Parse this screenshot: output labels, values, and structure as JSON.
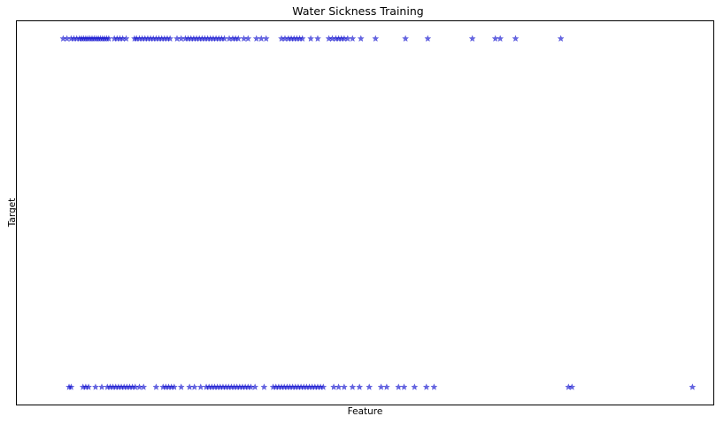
{
  "chart_data": {
    "type": "scatter",
    "title": "Water Sickness Training",
    "xlabel": "Feature",
    "ylabel": "Target",
    "xlim": [
      0,
      100
    ],
    "ylim": [
      -0.05,
      1.05
    ],
    "grid": false,
    "xticks": false,
    "yticks": false,
    "marker": "star",
    "color": "#0000cc",
    "opacity": 0.6,
    "series": [
      {
        "y": 1,
        "x": [
          6.65,
          7.2,
          7.8,
          8.2,
          8.6,
          9.0,
          9.3,
          9.6,
          9.9,
          10.2,
          10.5,
          10.8,
          11.1,
          11.4,
          11.7,
          12.0,
          12.3,
          12.6,
          12.9,
          13.2,
          14.0,
          14.4,
          14.8,
          15.2,
          15.7,
          16.9,
          17.2,
          17.6,
          18.0,
          18.4,
          18.8,
          19.2,
          19.6,
          20.0,
          20.4,
          20.8,
          21.2,
          21.6,
          22.0,
          23.0,
          23.6,
          24.2,
          24.6,
          25.0,
          25.4,
          25.8,
          26.2,
          26.6,
          27.0,
          27.4,
          27.8,
          28.2,
          28.6,
          29.0,
          29.4,
          29.8,
          30.5,
          31.0,
          31.4,
          31.8,
          32.6,
          33.2,
          34.4,
          35.1,
          35.8,
          38.0,
          38.5,
          39.0,
          39.4,
          39.8,
          40.2,
          40.6,
          41.0,
          42.2,
          43.2,
          44.8,
          45.3,
          45.8,
          46.2,
          46.6,
          47.0,
          47.5,
          48.2,
          49.4,
          51.5,
          55.8,
          59.0,
          65.4,
          68.7,
          69.4,
          71.6,
          78.1
        ]
      },
      {
        "y": 0,
        "x": [
          7.5,
          7.8,
          9.5,
          9.9,
          10.3,
          11.3,
          12.2,
          13.0,
          13.4,
          13.8,
          14.2,
          14.6,
          15.0,
          15.4,
          15.8,
          16.2,
          16.6,
          17.0,
          17.6,
          18.2,
          20.0,
          21.0,
          21.4,
          21.8,
          22.2,
          22.6,
          23.6,
          24.8,
          25.5,
          26.4,
          27.2,
          27.6,
          28.0,
          28.4,
          28.8,
          29.2,
          29.6,
          30.0,
          30.4,
          30.8,
          31.2,
          31.6,
          32.0,
          32.4,
          32.8,
          33.2,
          33.6,
          34.2,
          35.5,
          36.8,
          37.2,
          37.6,
          38.0,
          38.4,
          38.8,
          39.2,
          39.6,
          40.0,
          40.4,
          40.8,
          41.2,
          41.6,
          42.0,
          42.4,
          42.8,
          43.2,
          43.6,
          44.0,
          45.5,
          46.2,
          47.0,
          48.2,
          49.2,
          50.6,
          52.3,
          53.1,
          54.8,
          55.6,
          57.1,
          58.8,
          59.9,
          79.2,
          79.7,
          97.0
        ]
      }
    ]
  }
}
